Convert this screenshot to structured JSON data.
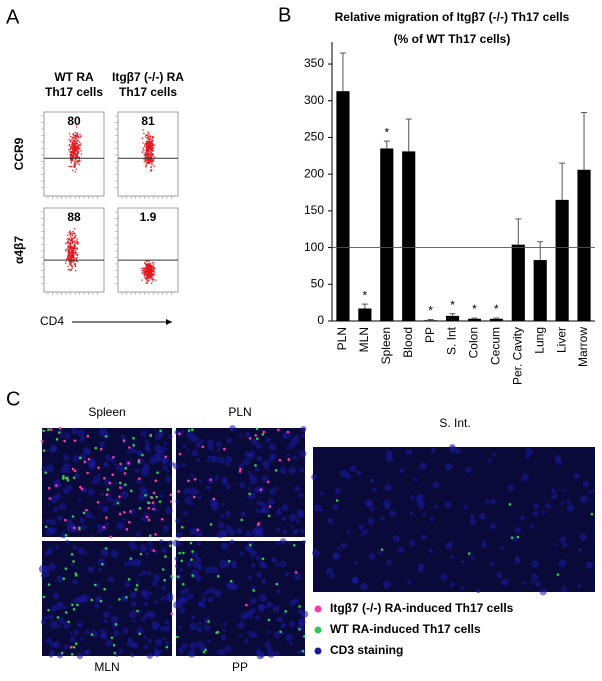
{
  "panel_a": {
    "letter": "A",
    "columns": [
      [
        "WT RA",
        "Th17 cells"
      ],
      [
        "Itgβ7 (-/-) RA",
        "Th17 cells"
      ]
    ],
    "rows": [
      "CCR9",
      "α4β7"
    ],
    "percentages": [
      [
        80,
        81
      ],
      [
        88,
        1.9
      ]
    ],
    "x_axis": "CD4"
  },
  "panel_b": {
    "letter": "B"
  },
  "chart_data": {
    "type": "bar",
    "title": "Relative migration of Itgβ7 (-/-) Th17 cells",
    "subtitle": "(% of WT Th17 cells)",
    "categories": [
      "PLN",
      "MLN",
      "Spleen",
      "Blood",
      "PP",
      "S. Int",
      "Colon",
      "Cecum",
      "Per. Cavity",
      "Lung",
      "Liver",
      "Marrow"
    ],
    "values": [
      313,
      17,
      235,
      231,
      1,
      7,
      3,
      3,
      104,
      83,
      165,
      206
    ],
    "errors": [
      52,
      6,
      10,
      44,
      1,
      3,
      1,
      1,
      35,
      25,
      50,
      78
    ],
    "markers": [
      null,
      "*",
      "*",
      null,
      "*",
      "*",
      "*",
      "*",
      null,
      null,
      null,
      null
    ],
    "color": "#000000",
    "reference_line": 100,
    "ylim": [
      0,
      380
    ],
    "yticks": [
      0,
      50,
      100,
      150,
      200,
      250,
      300,
      350
    ],
    "grid": false
  },
  "panel_c": {
    "letter": "C",
    "images": [
      "Spleen",
      "PLN",
      "MLN",
      "PP",
      "S. Int."
    ],
    "legend": [
      {
        "label": "Itgβ7 (-/-) RA-induced Th17 cells",
        "color": "#ff3aa8"
      },
      {
        "label": "WT RA-induced Th17 cells",
        "color": "#2ecc55"
      },
      {
        "label": "CD3 staining",
        "color": "#1a1aa0"
      }
    ]
  }
}
